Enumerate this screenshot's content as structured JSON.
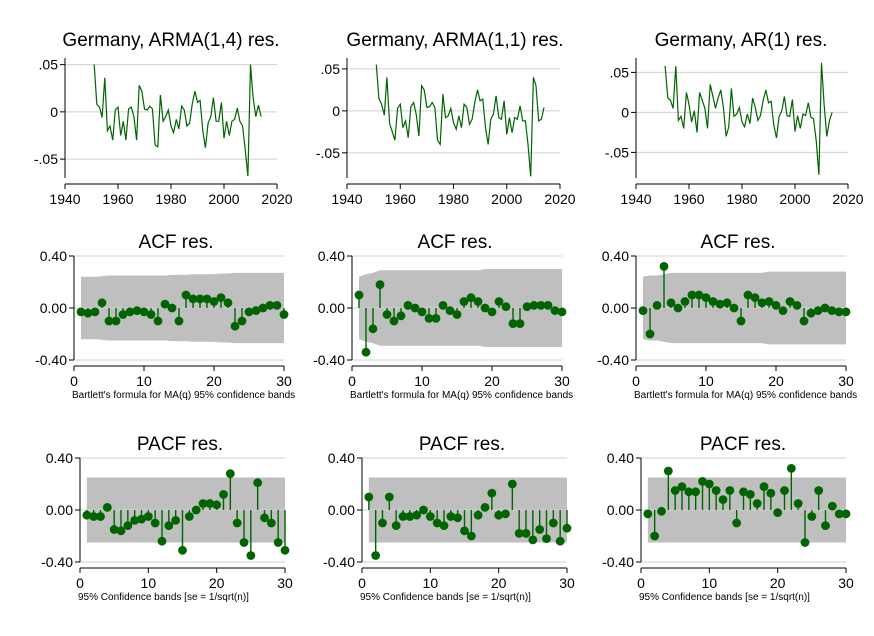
{
  "colors": {
    "series": "#006400",
    "band": "#bfbfbf",
    "axis": "#000000",
    "grid": "#d0d0d0"
  },
  "chart_data": [
    {
      "type": "line",
      "title": "Germany, ARMA(1,4) res.",
      "xlim": [
        1940,
        2020
      ],
      "ylim": [
        -0.07,
        0.057
      ],
      "xticks": [
        1940,
        1960,
        1980,
        2000,
        2020
      ],
      "xtick_labels": [
        "1940",
        "1960",
        "1980",
        "2000",
        "2020"
      ],
      "yticks": [
        0.05,
        0,
        -0.05
      ],
      "ytick_labels": [
        ".05",
        "0",
        "-.05"
      ],
      "x": [
        1951,
        1952,
        1953,
        1954,
        1955,
        1956,
        1957,
        1958,
        1959,
        1960,
        1961,
        1962,
        1963,
        1964,
        1965,
        1966,
        1967,
        1968,
        1969,
        1970,
        1971,
        1972,
        1973,
        1974,
        1975,
        1976,
        1977,
        1978,
        1979,
        1980,
        1981,
        1982,
        1983,
        1984,
        1985,
        1986,
        1987,
        1988,
        1989,
        1990,
        1991,
        1992,
        1993,
        1994,
        1995,
        1996,
        1997,
        1998,
        1999,
        2000,
        2001,
        2002,
        2003,
        2004,
        2005,
        2006,
        2007,
        2008,
        2009,
        2010,
        2011,
        2012,
        2013,
        2014
      ],
      "y": [
        0.05,
        0.008,
        0.005,
        -0.006,
        0.036,
        -0.02,
        -0.015,
        -0.03,
        0.002,
        0.005,
        -0.025,
        -0.01,
        -0.03,
        0.003,
        0.005,
        -0.005,
        -0.03,
        0.028,
        0.022,
        0.003,
        0.002,
        0.006,
        0.003,
        -0.035,
        -0.037,
        0.018,
        -0.01,
        -0.005,
        0.002,
        -0.015,
        -0.022,
        -0.008,
        -0.018,
        0.006,
        0.002,
        -0.015,
        -0.012,
        0.008,
        0.022,
        0.01,
        0.012,
        -0.02,
        -0.038,
        -0.012,
        -0.005,
        0.015,
        -0.01,
        -0.01,
        0.01,
        -0.028,
        -0.01,
        -0.025,
        -0.01,
        -0.008,
        0.004,
        -0.01,
        -0.015,
        -0.04,
        -0.068,
        0.05,
        0.015,
        -0.005,
        0.007,
        -0.005
      ]
    },
    {
      "type": "line",
      "title": "Germany, ARMA(1,1) res.",
      "xlim": [
        1940,
        2020
      ],
      "ylim": [
        -0.08,
        0.063
      ],
      "xticks": [
        1940,
        1960,
        1980,
        2000,
        2020
      ],
      "xtick_labels": [
        "1940",
        "1960",
        "1980",
        "2000",
        "2020"
      ],
      "yticks": [
        0.05,
        0,
        -0.05
      ],
      "ytick_labels": [
        ".05",
        "0",
        "-.05"
      ],
      "x": [
        1951,
        1952,
        1953,
        1954,
        1955,
        1956,
        1957,
        1958,
        1959,
        1960,
        1961,
        1962,
        1963,
        1964,
        1965,
        1966,
        1967,
        1968,
        1969,
        1970,
        1971,
        1972,
        1973,
        1974,
        1975,
        1976,
        1977,
        1978,
        1979,
        1980,
        1981,
        1982,
        1983,
        1984,
        1985,
        1986,
        1987,
        1988,
        1989,
        1990,
        1991,
        1992,
        1993,
        1994,
        1995,
        1996,
        1997,
        1998,
        1999,
        2000,
        2001,
        2002,
        2003,
        2004,
        2005,
        2006,
        2007,
        2008,
        2009,
        2010,
        2011,
        2012,
        2013,
        2014
      ],
      "y": [
        0.055,
        0.015,
        0.008,
        -0.005,
        0.04,
        -0.015,
        -0.025,
        -0.035,
        0.003,
        0.008,
        -0.02,
        -0.012,
        -0.032,
        0.005,
        0.01,
        -0.004,
        -0.03,
        0.03,
        0.025,
        0.004,
        0.005,
        0.01,
        0.004,
        -0.035,
        -0.04,
        0.02,
        -0.008,
        -0.006,
        0.003,
        -0.014,
        -0.022,
        -0.006,
        -0.02,
        0.008,
        0.004,
        -0.016,
        -0.01,
        0.01,
        0.025,
        0.012,
        0.014,
        -0.02,
        -0.04,
        -0.01,
        -0.004,
        0.018,
        -0.008,
        -0.01,
        0.012,
        -0.028,
        -0.008,
        -0.026,
        -0.008,
        -0.01,
        0.006,
        -0.012,
        -0.012,
        -0.04,
        -0.078,
        0.04,
        0.03,
        -0.012,
        -0.01,
        0.004
      ]
    },
    {
      "type": "line",
      "title": "Germany, AR(1) res.",
      "xlim": [
        1940,
        2020
      ],
      "ylim": [
        -0.082,
        0.068
      ],
      "xticks": [
        1940,
        1960,
        1980,
        2000,
        2020
      ],
      "xtick_labels": [
        "1940",
        "1960",
        "1980",
        "2000",
        "2020"
      ],
      "yticks": [
        0.05,
        0,
        -0.05
      ],
      "ytick_labels": [
        ".05",
        "0",
        "-.05"
      ],
      "x": [
        1951,
        1952,
        1953,
        1954,
        1955,
        1956,
        1957,
        1958,
        1959,
        1960,
        1961,
        1962,
        1963,
        1964,
        1965,
        1966,
        1967,
        1968,
        1969,
        1970,
        1971,
        1972,
        1973,
        1974,
        1975,
        1976,
        1977,
        1978,
        1979,
        1980,
        1981,
        1982,
        1983,
        1984,
        1985,
        1986,
        1987,
        1988,
        1989,
        1990,
        1991,
        1992,
        1993,
        1994,
        1995,
        1996,
        1997,
        1998,
        1999,
        2000,
        2001,
        2002,
        2003,
        2004,
        2005,
        2006,
        2007,
        2008,
        2009,
        2010,
        2011,
        2012,
        2013,
        2014
      ],
      "y": [
        0.058,
        0.018,
        0.015,
        0.005,
        0.058,
        -0.01,
        -0.005,
        -0.02,
        0.025,
        0.01,
        -0.012,
        0.002,
        -0.025,
        0.025,
        0.015,
        0.005,
        -0.02,
        0.035,
        0.02,
        0.005,
        0.018,
        0.028,
        0.005,
        -0.03,
        -0.018,
        0.03,
        -0.005,
        -0.002,
        0.006,
        -0.012,
        -0.018,
        -0.002,
        -0.014,
        0.018,
        0.006,
        -0.01,
        -0.004,
        0.015,
        0.028,
        0.012,
        0.014,
        -0.016,
        -0.032,
        -0.005,
        0.002,
        0.02,
        -0.004,
        -0.005,
        0.016,
        -0.024,
        -0.004,
        -0.02,
        -0.002,
        -0.004,
        0.012,
        -0.006,
        -0.008,
        -0.035,
        -0.078,
        0.062,
        0.01,
        -0.03,
        -0.01,
        0.0
      ]
    },
    {
      "type": "stem",
      "title": "ACF res.",
      "note": "Bartlett's formula for MA(q) 95% confidence bands",
      "xlim": [
        0,
        30
      ],
      "ylim": [
        -0.4,
        0.4
      ],
      "xticks": [
        0,
        10,
        20,
        30
      ],
      "xtick_labels": [
        "0",
        "10",
        "20",
        "30"
      ],
      "yticks": [
        0.4,
        0,
        -0.4
      ],
      "ytick_labels": [
        "0.40",
        "0.00",
        "-0.40"
      ],
      "band": [
        0.24,
        0.24,
        0.24,
        0.245,
        0.25,
        0.25,
        0.25,
        0.25,
        0.25,
        0.25,
        0.25,
        0.25,
        0.25,
        0.255,
        0.255,
        0.255,
        0.26,
        0.26,
        0.26,
        0.26,
        0.265,
        0.265,
        0.27,
        0.27,
        0.27,
        0.27,
        0.27,
        0.27,
        0.27,
        0.27
      ],
      "lags": [
        1,
        2,
        3,
        4,
        5,
        6,
        7,
        8,
        9,
        10,
        11,
        12,
        13,
        14,
        15,
        16,
        17,
        18,
        19,
        20,
        21,
        22,
        23,
        24,
        25,
        26,
        27,
        28,
        29,
        30
      ],
      "values": [
        -0.03,
        -0.04,
        -0.03,
        0.04,
        -0.1,
        -0.1,
        -0.05,
        -0.03,
        -0.02,
        -0.03,
        -0.05,
        -0.1,
        0.03,
        0.0,
        -0.1,
        0.1,
        0.07,
        0.07,
        0.07,
        0.05,
        0.08,
        0.04,
        -0.14,
        -0.1,
        -0.03,
        -0.02,
        0.0,
        0.02,
        0.02,
        -0.05
      ]
    },
    {
      "type": "stem",
      "title": "ACF res.",
      "note": "Bartlett's formula for MA(q) 95% confidence bands",
      "xlim": [
        0,
        30
      ],
      "ylim": [
        -0.4,
        0.4
      ],
      "xticks": [
        0,
        10,
        20,
        30
      ],
      "xtick_labels": [
        "0",
        "10",
        "20",
        "30"
      ],
      "yticks": [
        0.4,
        0,
        -0.4
      ],
      "ytick_labels": [
        "0.40",
        "0.00",
        "-0.40"
      ],
      "band": [
        0.24,
        0.26,
        0.27,
        0.29,
        0.29,
        0.29,
        0.29,
        0.29,
        0.29,
        0.29,
        0.29,
        0.29,
        0.29,
        0.29,
        0.29,
        0.29,
        0.29,
        0.29,
        0.3,
        0.3,
        0.3,
        0.3,
        0.3,
        0.3,
        0.3,
        0.3,
        0.3,
        0.3,
        0.3,
        0.3
      ],
      "lags": [
        1,
        2,
        3,
        4,
        5,
        6,
        7,
        8,
        9,
        10,
        11,
        12,
        13,
        14,
        15,
        16,
        17,
        18,
        19,
        20,
        21,
        22,
        23,
        24,
        25,
        26,
        27,
        28,
        29,
        30
      ],
      "values": [
        0.1,
        -0.34,
        -0.16,
        0.18,
        -0.05,
        -0.1,
        -0.06,
        0.02,
        0.0,
        -0.03,
        -0.08,
        -0.08,
        0.02,
        -0.02,
        -0.05,
        0.05,
        0.08,
        0.05,
        0.0,
        -0.03,
        0.05,
        0.01,
        -0.12,
        -0.12,
        0.01,
        0.02,
        0.02,
        0.02,
        -0.02,
        -0.03
      ]
    },
    {
      "type": "stem",
      "title": "ACF res.",
      "note": "Bartlett's formula for MA(q) 95% confidence bands",
      "xlim": [
        0,
        30
      ],
      "ylim": [
        -0.4,
        0.4
      ],
      "xticks": [
        0,
        10,
        20,
        30
      ],
      "xtick_labels": [
        "0",
        "10",
        "20",
        "30"
      ],
      "yticks": [
        0.4,
        0,
        -0.4
      ],
      "ytick_labels": [
        "0.40",
        "0.00",
        "-0.40"
      ],
      "band": [
        0.24,
        0.25,
        0.25,
        0.26,
        0.27,
        0.27,
        0.27,
        0.27,
        0.27,
        0.27,
        0.27,
        0.27,
        0.27,
        0.27,
        0.27,
        0.27,
        0.27,
        0.27,
        0.28,
        0.28,
        0.28,
        0.28,
        0.28,
        0.28,
        0.28,
        0.28,
        0.28,
        0.28,
        0.28,
        0.28
      ],
      "lags": [
        1,
        2,
        3,
        4,
        5,
        6,
        7,
        8,
        9,
        10,
        11,
        12,
        13,
        14,
        15,
        16,
        17,
        18,
        19,
        20,
        21,
        22,
        23,
        24,
        25,
        26,
        27,
        28,
        29,
        30
      ],
      "values": [
        -0.02,
        -0.2,
        0.02,
        0.32,
        0.04,
        0.0,
        0.05,
        0.1,
        0.1,
        0.08,
        0.05,
        0.03,
        0.04,
        0.0,
        -0.1,
        0.1,
        0.08,
        0.04,
        0.05,
        0.02,
        -0.02,
        0.05,
        0.02,
        -0.1,
        -0.04,
        -0.02,
        0.0,
        -0.02,
        -0.03,
        -0.03
      ]
    },
    {
      "type": "stem",
      "title": "PACF res.",
      "note": "95% Confidence bands [se = 1/sqrt(n)]",
      "xlim": [
        0,
        30
      ],
      "ylim": [
        -0.4,
        0.4
      ],
      "xticks": [
        0,
        10,
        20,
        30
      ],
      "xtick_labels": [
        "0",
        "10",
        "20",
        "30"
      ],
      "yticks": [
        0.4,
        0,
        -0.4
      ],
      "ytick_labels": [
        "0.40",
        "0.00",
        "-0.40"
      ],
      "band_const": 0.25,
      "lags": [
        1,
        2,
        3,
        4,
        5,
        6,
        7,
        8,
        9,
        10,
        11,
        12,
        13,
        14,
        15,
        16,
        17,
        18,
        19,
        20,
        21,
        22,
        23,
        24,
        25,
        26,
        27,
        28,
        29,
        30
      ],
      "values": [
        -0.04,
        -0.05,
        -0.05,
        0.02,
        -0.15,
        -0.16,
        -0.12,
        -0.08,
        -0.07,
        -0.05,
        -0.1,
        -0.24,
        -0.12,
        -0.08,
        -0.31,
        -0.05,
        0.0,
        0.05,
        0.05,
        0.04,
        0.12,
        0.28,
        -0.1,
        -0.25,
        -0.35,
        0.21,
        -0.06,
        -0.1,
        -0.25,
        -0.31
      ]
    },
    {
      "type": "stem",
      "title": "PACF res.",
      "note": "95% Confidence bands [se = 1/sqrt(n)]",
      "xlim": [
        0,
        30
      ],
      "ylim": [
        -0.4,
        0.4
      ],
      "xticks": [
        0,
        10,
        20,
        30
      ],
      "xtick_labels": [
        "0",
        "10",
        "20",
        "30"
      ],
      "yticks": [
        0.4,
        0,
        -0.4
      ],
      "ytick_labels": [
        "0.40",
        "0.00",
        "-0.40"
      ],
      "band_const": 0.25,
      "lags": [
        1,
        2,
        3,
        4,
        5,
        6,
        7,
        8,
        9,
        10,
        11,
        12,
        13,
        14,
        15,
        16,
        17,
        18,
        19,
        20,
        21,
        22,
        23,
        24,
        25,
        26,
        27,
        28,
        29,
        30
      ],
      "values": [
        0.1,
        -0.35,
        -0.1,
        0.1,
        -0.12,
        -0.05,
        -0.05,
        -0.04,
        0.0,
        -0.05,
        -0.1,
        -0.12,
        -0.05,
        -0.06,
        -0.16,
        -0.2,
        -0.04,
        0.02,
        0.13,
        -0.04,
        -0.03,
        0.2,
        -0.18,
        -0.18,
        -0.23,
        -0.15,
        -0.22,
        -0.1,
        -0.24,
        -0.14
      ]
    },
    {
      "type": "stem",
      "title": "PACF res.",
      "note": "95% Confidence bands [se = 1/sqrt(n)]",
      "xlim": [
        0,
        30
      ],
      "ylim": [
        -0.4,
        0.4
      ],
      "xticks": [
        0,
        10,
        20,
        30
      ],
      "xtick_labels": [
        "0",
        "10",
        "20",
        "30"
      ],
      "yticks": [
        0.4,
        0,
        -0.4
      ],
      "ytick_labels": [
        "0.40",
        "0.00",
        "-0.40"
      ],
      "band_const": 0.25,
      "lags": [
        1,
        2,
        3,
        4,
        5,
        6,
        7,
        8,
        9,
        10,
        11,
        12,
        13,
        14,
        15,
        16,
        17,
        18,
        19,
        20,
        21,
        22,
        23,
        24,
        25,
        26,
        27,
        28,
        29,
        30
      ],
      "values": [
        -0.03,
        -0.2,
        -0.01,
        0.3,
        0.15,
        0.18,
        0.14,
        0.14,
        0.22,
        0.2,
        0.15,
        0.08,
        0.15,
        -0.1,
        0.14,
        0.12,
        0.05,
        0.18,
        0.13,
        -0.02,
        0.15,
        0.32,
        0.05,
        -0.25,
        -0.05,
        0.15,
        -0.12,
        0.03,
        -0.03,
        -0.03
      ]
    }
  ]
}
